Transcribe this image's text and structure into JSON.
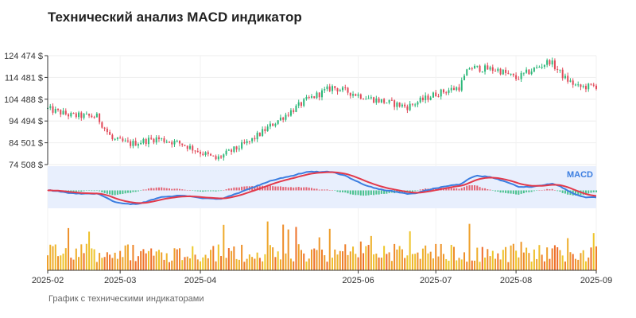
{
  "chart_data": {
    "type": "candlestick",
    "title": "Технический анализ MACD индикатор",
    "subtitle": "График с техническими индикаторами",
    "y_ticks": [
      "124 474 $",
      "114 481 $",
      "104 488 $",
      "94 494 $",
      "84 501 $",
      "74 508 $"
    ],
    "y_tick_values": [
      124474,
      114481,
      104488,
      94494,
      84501,
      74508
    ],
    "ylim": [
      74508,
      124474
    ],
    "x_ticks": [
      "2025-02",
      "2025-03",
      "2025-04",
      "2025-06",
      "2025-07",
      "2025-08",
      "2025-09"
    ],
    "x_tick_dates": [
      "2025-02-01",
      "2025-03-01",
      "2025-04-01",
      "2025-06-01",
      "2025-07-01",
      "2025-08-01",
      "2025-09-01"
    ],
    "x_range": [
      "2025-02-01",
      "2025-09-01"
    ],
    "macd_label": "MACD",
    "price_path": [
      [
        "2025-02-01",
        100000
      ],
      [
        "2025-02-10",
        97000
      ],
      [
        "2025-02-20",
        96500
      ],
      [
        "2025-02-26",
        86000
      ],
      [
        "2025-03-05",
        84000
      ],
      [
        "2025-03-15",
        86500
      ],
      [
        "2025-03-25",
        84000
      ],
      [
        "2025-04-07",
        77000
      ],
      [
        "2025-04-20",
        85000
      ],
      [
        "2025-04-30",
        94000
      ],
      [
        "2025-05-12",
        104000
      ],
      [
        "2025-05-22",
        110000
      ],
      [
        "2025-06-05",
        105000
      ],
      [
        "2025-06-20",
        101000
      ],
      [
        "2025-07-01",
        107000
      ],
      [
        "2025-07-10",
        110000
      ],
      [
        "2025-07-14",
        119000
      ],
      [
        "2025-07-25",
        118000
      ],
      [
        "2025-08-01",
        114000
      ],
      [
        "2025-08-14",
        122000
      ],
      [
        "2025-08-20",
        114000
      ],
      [
        "2025-08-25",
        110000
      ],
      [
        "2025-09-01",
        110500
      ]
    ],
    "macd_color": "#3b7de0",
    "signal_color": "#e2394b",
    "up_color": "#2db87a",
    "down_color": "#e24a5a"
  }
}
